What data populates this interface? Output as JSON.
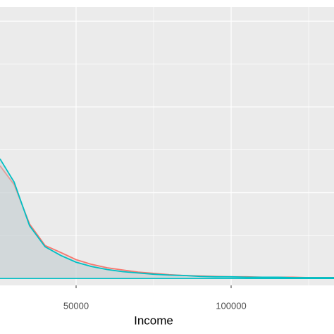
{
  "chart_data": {
    "type": "density",
    "x_label": "Income",
    "x": [
      25455,
      30000,
      35000,
      40000,
      45000,
      50000,
      55000,
      60000,
      65000,
      70000,
      75000,
      80000,
      85000,
      90000,
      95000,
      100000,
      105000,
      110000,
      115000,
      120000,
      125000,
      130000,
      133182
    ],
    "series": [
      {
        "color": "#F8766D",
        "values": [
          2.63,
          2.19,
          1.27,
          0.77,
          0.61,
          0.44,
          0.33,
          0.25,
          0.2,
          0.15,
          0.12,
          0.09,
          0.07,
          0.06,
          0.05,
          0.04,
          0.04,
          0.03,
          0.03,
          0.03,
          0.02,
          0.02,
          0.02
        ]
      },
      {
        "color": "#00BFC4",
        "values": [
          2.79,
          2.25,
          1.23,
          0.74,
          0.54,
          0.38,
          0.28,
          0.21,
          0.16,
          0.13,
          0.1,
          0.08,
          0.07,
          0.05,
          0.04,
          0.04,
          0.03,
          0.03,
          0.03,
          0.02,
          0.02,
          0.02,
          0.02
        ]
      }
    ],
    "xlim": [
      25455,
      133182
    ],
    "ylim": [
      -0.16,
      6.33
    ],
    "xticks": [
      50000,
      100000
    ],
    "x_minor_grid": [
      75000,
      125000
    ],
    "y_major_grid": [
      2,
      4,
      6
    ],
    "y_minor_grid": [
      1,
      3,
      5
    ],
    "grid": true
  }
}
